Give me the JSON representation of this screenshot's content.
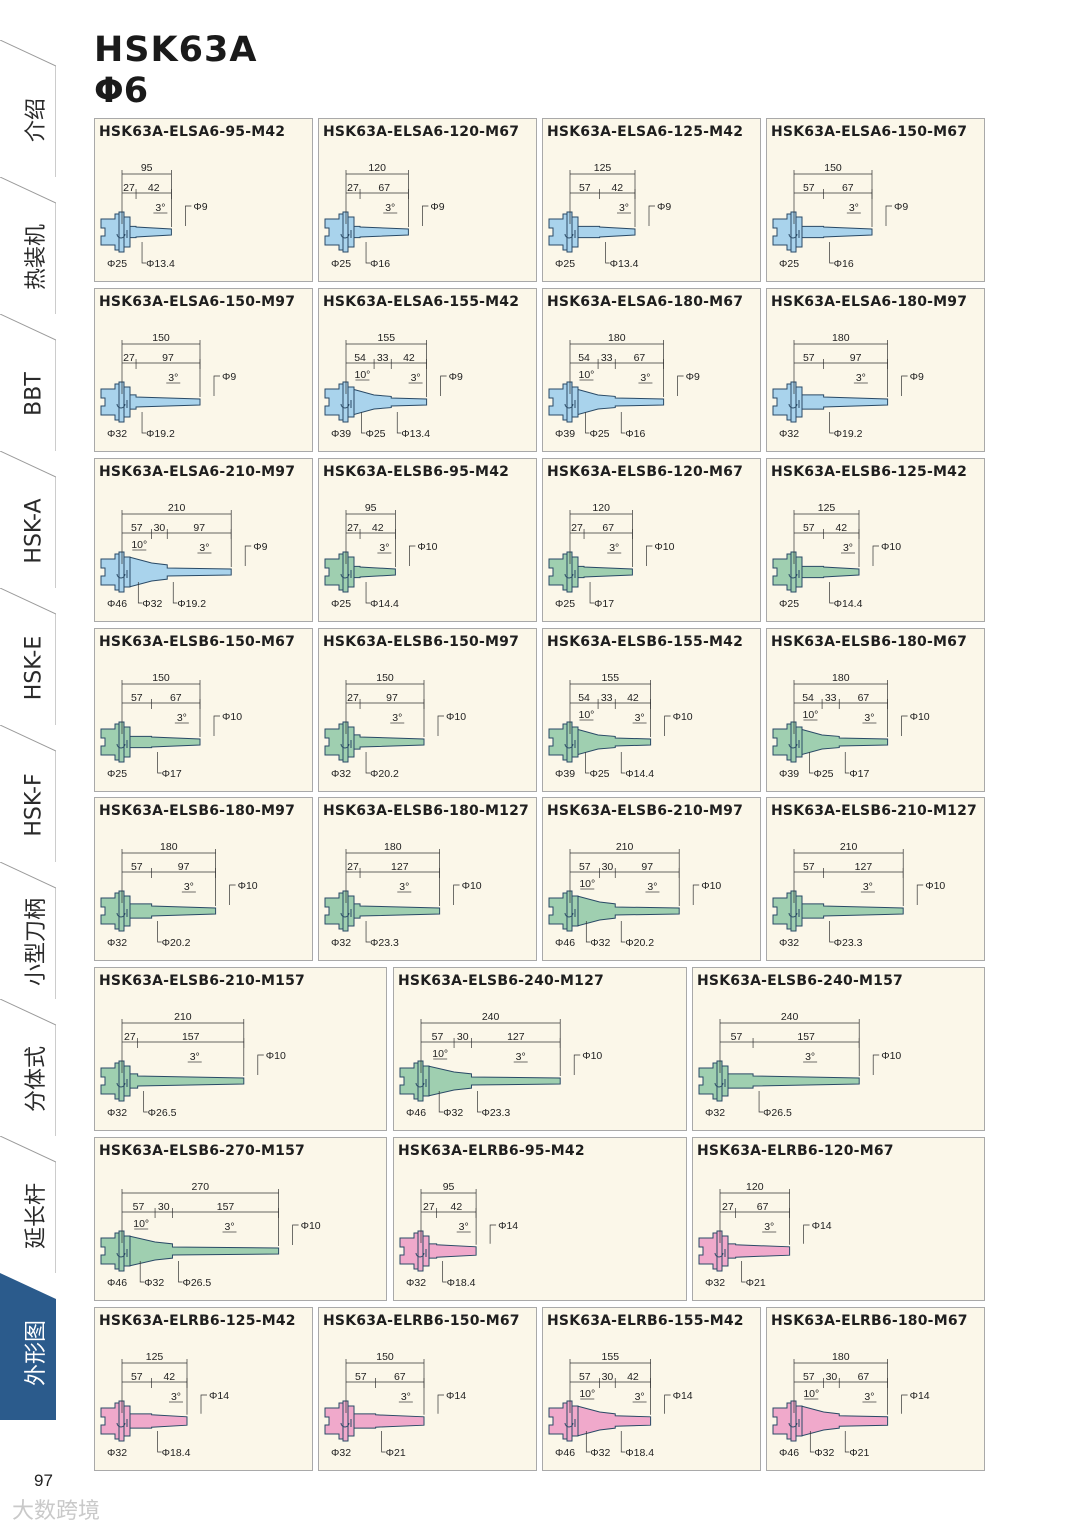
{
  "header": {
    "title": "HSK63A",
    "subtitle": "Φ6"
  },
  "page_number": "97",
  "watermark": "大数跨境",
  "colors": {
    "blue": "#a9d3ec",
    "green": "#9fcfb0",
    "pink": "#f0a9cb",
    "active_tab": "#2b5b8c",
    "card_bg": "#fbf7e9"
  },
  "side_nav": [
    {
      "label": "介绍",
      "active": false
    },
    {
      "label": "热装机",
      "active": false
    },
    {
      "label": "BBT",
      "active": false
    },
    {
      "label": "HSK-A",
      "active": false
    },
    {
      "label": "HSK-E",
      "active": false
    },
    {
      "label": "HSK-F",
      "active": false
    },
    {
      "label": "小型刀柄",
      "active": false
    },
    {
      "label": "分体式",
      "active": false
    },
    {
      "label": "延长杆",
      "active": false
    },
    {
      "label": "外形图",
      "active": true
    }
  ],
  "rows": [
    [
      {
        "model": "HSK63A-ELSA6-95-M42",
        "color": "blue",
        "total": "95",
        "segments": [
          "27",
          "42"
        ],
        "angles": [
          "3°"
        ],
        "tip": "Φ9",
        "diameters": [
          "Φ25",
          "Φ13.4"
        ]
      },
      {
        "model": "HSK63A-ELSA6-120-M67",
        "color": "blue",
        "total": "120",
        "segments": [
          "27",
          "67"
        ],
        "angles": [
          "3°"
        ],
        "tip": "Φ9",
        "diameters": [
          "Φ25",
          "Φ16"
        ]
      },
      {
        "model": "HSK63A-ELSA6-125-M42",
        "color": "blue",
        "total": "125",
        "segments": [
          "57",
          "42"
        ],
        "angles": [
          "3°"
        ],
        "tip": "Φ9",
        "diameters": [
          "Φ25",
          "Φ13.4"
        ]
      },
      {
        "model": "HSK63A-ELSA6-150-M67",
        "color": "blue",
        "total": "150",
        "segments": [
          "57",
          "67"
        ],
        "angles": [
          "3°"
        ],
        "tip": "Φ9",
        "diameters": [
          "Φ25",
          "Φ16"
        ]
      }
    ],
    [
      {
        "model": "HSK63A-ELSA6-150-M97",
        "color": "blue",
        "total": "150",
        "segments": [
          "27",
          "97"
        ],
        "angles": [
          "3°"
        ],
        "tip": "Φ9",
        "diameters": [
          "Φ32",
          "Φ19.2"
        ]
      },
      {
        "model": "HSK63A-ELSA6-155-M42",
        "color": "blue",
        "total": "155",
        "segments": [
          "54",
          "33",
          "42"
        ],
        "angles": [
          "10°",
          "3°"
        ],
        "tip": "Φ9",
        "diameters": [
          "Φ39",
          "Φ25",
          "Φ13.4"
        ]
      },
      {
        "model": "HSK63A-ELSA6-180-M67",
        "color": "blue",
        "total": "180",
        "segments": [
          "54",
          "33",
          "67"
        ],
        "angles": [
          "10°",
          "3°"
        ],
        "tip": "Φ9",
        "diameters": [
          "Φ39",
          "Φ25",
          "Φ16"
        ]
      },
      {
        "model": "HSK63A-ELSA6-180-M97",
        "color": "blue",
        "total": "180",
        "segments": [
          "57",
          "97"
        ],
        "angles": [
          "3°"
        ],
        "tip": "Φ9",
        "diameters": [
          "Φ32",
          "Φ19.2"
        ]
      }
    ],
    [
      {
        "model": "HSK63A-ELSA6-210-M97",
        "color": "blue",
        "total": "210",
        "segments": [
          "57",
          "30",
          "97"
        ],
        "angles": [
          "10°",
          "3°"
        ],
        "tip": "Φ9",
        "diameters": [
          "Φ46",
          "Φ32",
          "Φ19.2"
        ]
      },
      {
        "model": "HSK63A-ELSB6-95-M42",
        "color": "green",
        "total": "95",
        "segments": [
          "27",
          "42"
        ],
        "angles": [
          "3°"
        ],
        "tip": "Φ10",
        "diameters": [
          "Φ25",
          "Φ14.4"
        ]
      },
      {
        "model": "HSK63A-ELSB6-120-M67",
        "color": "green",
        "total": "120",
        "segments": [
          "27",
          "67"
        ],
        "angles": [
          "3°"
        ],
        "tip": "Φ10",
        "diameters": [
          "Φ25",
          "Φ17"
        ]
      },
      {
        "model": "HSK63A-ELSB6-125-M42",
        "color": "green",
        "total": "125",
        "segments": [
          "57",
          "42"
        ],
        "angles": [
          "3°"
        ],
        "tip": "Φ10",
        "diameters": [
          "Φ25",
          "Φ14.4"
        ]
      }
    ],
    [
      {
        "model": "HSK63A-ELSB6-150-M67",
        "color": "green",
        "total": "150",
        "segments": [
          "57",
          "67"
        ],
        "angles": [
          "3°"
        ],
        "tip": "Φ10",
        "diameters": [
          "Φ25",
          "Φ17"
        ]
      },
      {
        "model": "HSK63A-ELSB6-150-M97",
        "color": "green",
        "total": "150",
        "segments": [
          "27",
          "97"
        ],
        "angles": [
          "3°"
        ],
        "tip": "Φ10",
        "diameters": [
          "Φ32",
          "Φ20.2"
        ]
      },
      {
        "model": "HSK63A-ELSB6-155-M42",
        "color": "green",
        "total": "155",
        "segments": [
          "54",
          "33",
          "42"
        ],
        "angles": [
          "10°",
          "3°"
        ],
        "tip": "Φ10",
        "diameters": [
          "Φ39",
          "Φ25",
          "Φ14.4"
        ]
      },
      {
        "model": "HSK63A-ELSB6-180-M67",
        "color": "green",
        "total": "180",
        "segments": [
          "54",
          "33",
          "67"
        ],
        "angles": [
          "10°",
          "3°"
        ],
        "tip": "Φ10",
        "diameters": [
          "Φ39",
          "Φ25",
          "Φ17"
        ]
      }
    ],
    [
      {
        "model": "HSK63A-ELSB6-180-M97",
        "color": "green",
        "total": "180",
        "segments": [
          "57",
          "97"
        ],
        "angles": [
          "3°"
        ],
        "tip": "Φ10",
        "diameters": [
          "Φ32",
          "Φ20.2"
        ]
      },
      {
        "model": "HSK63A-ELSB6-180-M127",
        "color": "green",
        "total": "180",
        "segments": [
          "27",
          "127"
        ],
        "angles": [
          "3°"
        ],
        "tip": "Φ10",
        "diameters": [
          "Φ32",
          "Φ23.3"
        ]
      },
      {
        "model": "HSK63A-ELSB6-210-M97",
        "color": "green",
        "total": "210",
        "segments": [
          "57",
          "30",
          "97"
        ],
        "angles": [
          "10°",
          "3°"
        ],
        "tip": "Φ10",
        "diameters": [
          "Φ46",
          "Φ32",
          "Φ20.2"
        ]
      },
      {
        "model": "HSK63A-ELSB6-210-M127",
        "color": "green",
        "total": "210",
        "segments": [
          "57",
          "127"
        ],
        "angles": [
          "3°"
        ],
        "tip": "Φ10",
        "diameters": [
          "Φ32",
          "Φ23.3"
        ]
      }
    ],
    [
      {
        "model": "HSK63A-ELSB6-210-M157",
        "color": "green",
        "total": "210",
        "segments": [
          "27",
          "157"
        ],
        "angles": [
          "3°"
        ],
        "tip": "Φ10",
        "diameters": [
          "Φ32",
          "Φ26.5"
        ]
      },
      {
        "model": "HSK63A-ELSB6-240-M127",
        "color": "green",
        "total": "240",
        "segments": [
          "57",
          "30",
          "127"
        ],
        "angles": [
          "10°",
          "3°"
        ],
        "tip": "Φ10",
        "diameters": [
          "Φ46",
          "Φ32",
          "Φ23.3"
        ]
      },
      {
        "model": "HSK63A-ELSB6-240-M157",
        "color": "green",
        "total": "240",
        "segments": [
          "57",
          "157"
        ],
        "angles": [
          "3°"
        ],
        "tip": "Φ10",
        "diameters": [
          "Φ32",
          "Φ26.5"
        ]
      }
    ],
    [
      {
        "model": "HSK63A-ELSB6-270-M157",
        "color": "green",
        "total": "270",
        "segments": [
          "57",
          "30",
          "157"
        ],
        "angles": [
          "10°",
          "3°"
        ],
        "tip": "Φ10",
        "diameters": [
          "Φ46",
          "Φ32",
          "Φ26.5"
        ]
      },
      {
        "model": "HSK63A-ELRB6-95-M42",
        "color": "pink",
        "total": "95",
        "segments": [
          "27",
          "42"
        ],
        "angles": [
          "3°"
        ],
        "tip": "Φ14",
        "diameters": [
          "Φ32",
          "Φ18.4"
        ]
      },
      {
        "model": "HSK63A-ELRB6-120-M67",
        "color": "pink",
        "total": "120",
        "segments": [
          "27",
          "67"
        ],
        "angles": [
          "3°"
        ],
        "tip": "Φ14",
        "diameters": [
          "Φ32",
          "Φ21"
        ]
      }
    ],
    [
      {
        "model": "HSK63A-ELRB6-125-M42",
        "color": "pink",
        "total": "125",
        "segments": [
          "57",
          "42"
        ],
        "angles": [
          "3°"
        ],
        "tip": "Φ14",
        "diameters": [
          "Φ32",
          "Φ18.4"
        ]
      },
      {
        "model": "HSK63A-ELRB6-150-M67",
        "color": "pink",
        "total": "150",
        "segments": [
          "57",
          "67"
        ],
        "angles": [
          "3°"
        ],
        "tip": "Φ14",
        "diameters": [
          "Φ32",
          "Φ21"
        ]
      },
      {
        "model": "HSK63A-ELRB6-155-M42",
        "color": "pink",
        "total": "155",
        "segments": [
          "57",
          "30",
          "42"
        ],
        "angles": [
          "10°",
          "3°"
        ],
        "tip": "Φ14",
        "diameters": [
          "Φ46",
          "Φ32",
          "Φ18.4"
        ]
      },
      {
        "model": "HSK63A-ELRB6-180-M67",
        "color": "pink",
        "total": "180",
        "segments": [
          "57",
          "30",
          "67"
        ],
        "angles": [
          "10°",
          "3°"
        ],
        "tip": "Φ14",
        "diameters": [
          "Φ46",
          "Φ32",
          "Φ21"
        ]
      }
    ]
  ]
}
